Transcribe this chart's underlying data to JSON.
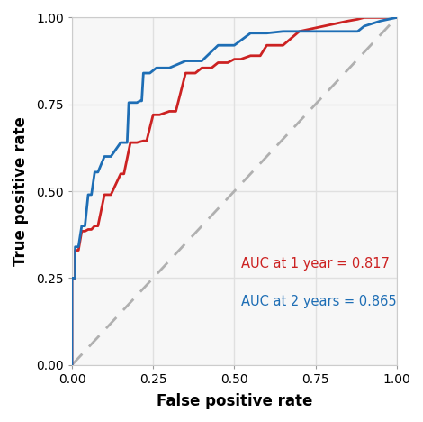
{
  "xlabel": "False positive rate",
  "ylabel": "True positive rate",
  "xlim": [
    0.0,
    1.0
  ],
  "ylim": [
    0.0,
    1.0
  ],
  "background_color": "#ffffff",
  "plot_bg_color": "#f7f7f7",
  "grid_color": "#e0e0e0",
  "auc1_label": "AUC at 1 year = 0.817",
  "auc2_label": "AUC at 2 years = 0.865",
  "color_1year": "#cc2222",
  "color_2year": "#1e6eb5",
  "diagonal_color": "#b0b0b0",
  "roc_1year_fpr": [
    0.0,
    0.0,
    0.01,
    0.01,
    0.02,
    0.03,
    0.04,
    0.05,
    0.06,
    0.07,
    0.08,
    0.1,
    0.12,
    0.15,
    0.16,
    0.18,
    0.2,
    0.22,
    0.23,
    0.25,
    0.27,
    0.3,
    0.32,
    0.35,
    0.38,
    0.4,
    0.43,
    0.45,
    0.48,
    0.5,
    0.52,
    0.55,
    0.58,
    0.6,
    0.65,
    0.7,
    0.75,
    0.8,
    0.85,
    0.88,
    0.9,
    0.95,
    1.0
  ],
  "roc_1year_tpr": [
    0.0,
    0.25,
    0.25,
    0.33,
    0.33,
    0.385,
    0.385,
    0.39,
    0.39,
    0.4,
    0.4,
    0.49,
    0.49,
    0.55,
    0.55,
    0.64,
    0.64,
    0.645,
    0.645,
    0.72,
    0.72,
    0.73,
    0.73,
    0.84,
    0.84,
    0.855,
    0.855,
    0.87,
    0.87,
    0.88,
    0.88,
    0.89,
    0.89,
    0.92,
    0.92,
    0.96,
    0.97,
    0.98,
    0.99,
    0.995,
    1.0,
    1.0,
    1.0
  ],
  "roc_2year_fpr": [
    0.0,
    0.0,
    0.01,
    0.01,
    0.02,
    0.03,
    0.04,
    0.05,
    0.06,
    0.07,
    0.08,
    0.1,
    0.12,
    0.15,
    0.17,
    0.175,
    0.2,
    0.21,
    0.215,
    0.22,
    0.24,
    0.26,
    0.3,
    0.35,
    0.4,
    0.45,
    0.5,
    0.55,
    0.6,
    0.65,
    0.7,
    0.75,
    0.8,
    0.85,
    0.88,
    0.9,
    0.95,
    1.0
  ],
  "roc_2year_tpr": [
    0.0,
    0.25,
    0.25,
    0.34,
    0.34,
    0.4,
    0.4,
    0.49,
    0.49,
    0.555,
    0.555,
    0.6,
    0.6,
    0.64,
    0.64,
    0.755,
    0.755,
    0.76,
    0.76,
    0.84,
    0.84,
    0.855,
    0.855,
    0.875,
    0.875,
    0.92,
    0.92,
    0.955,
    0.955,
    0.96,
    0.96,
    0.96,
    0.96,
    0.96,
    0.96,
    0.975,
    0.99,
    1.0
  ]
}
